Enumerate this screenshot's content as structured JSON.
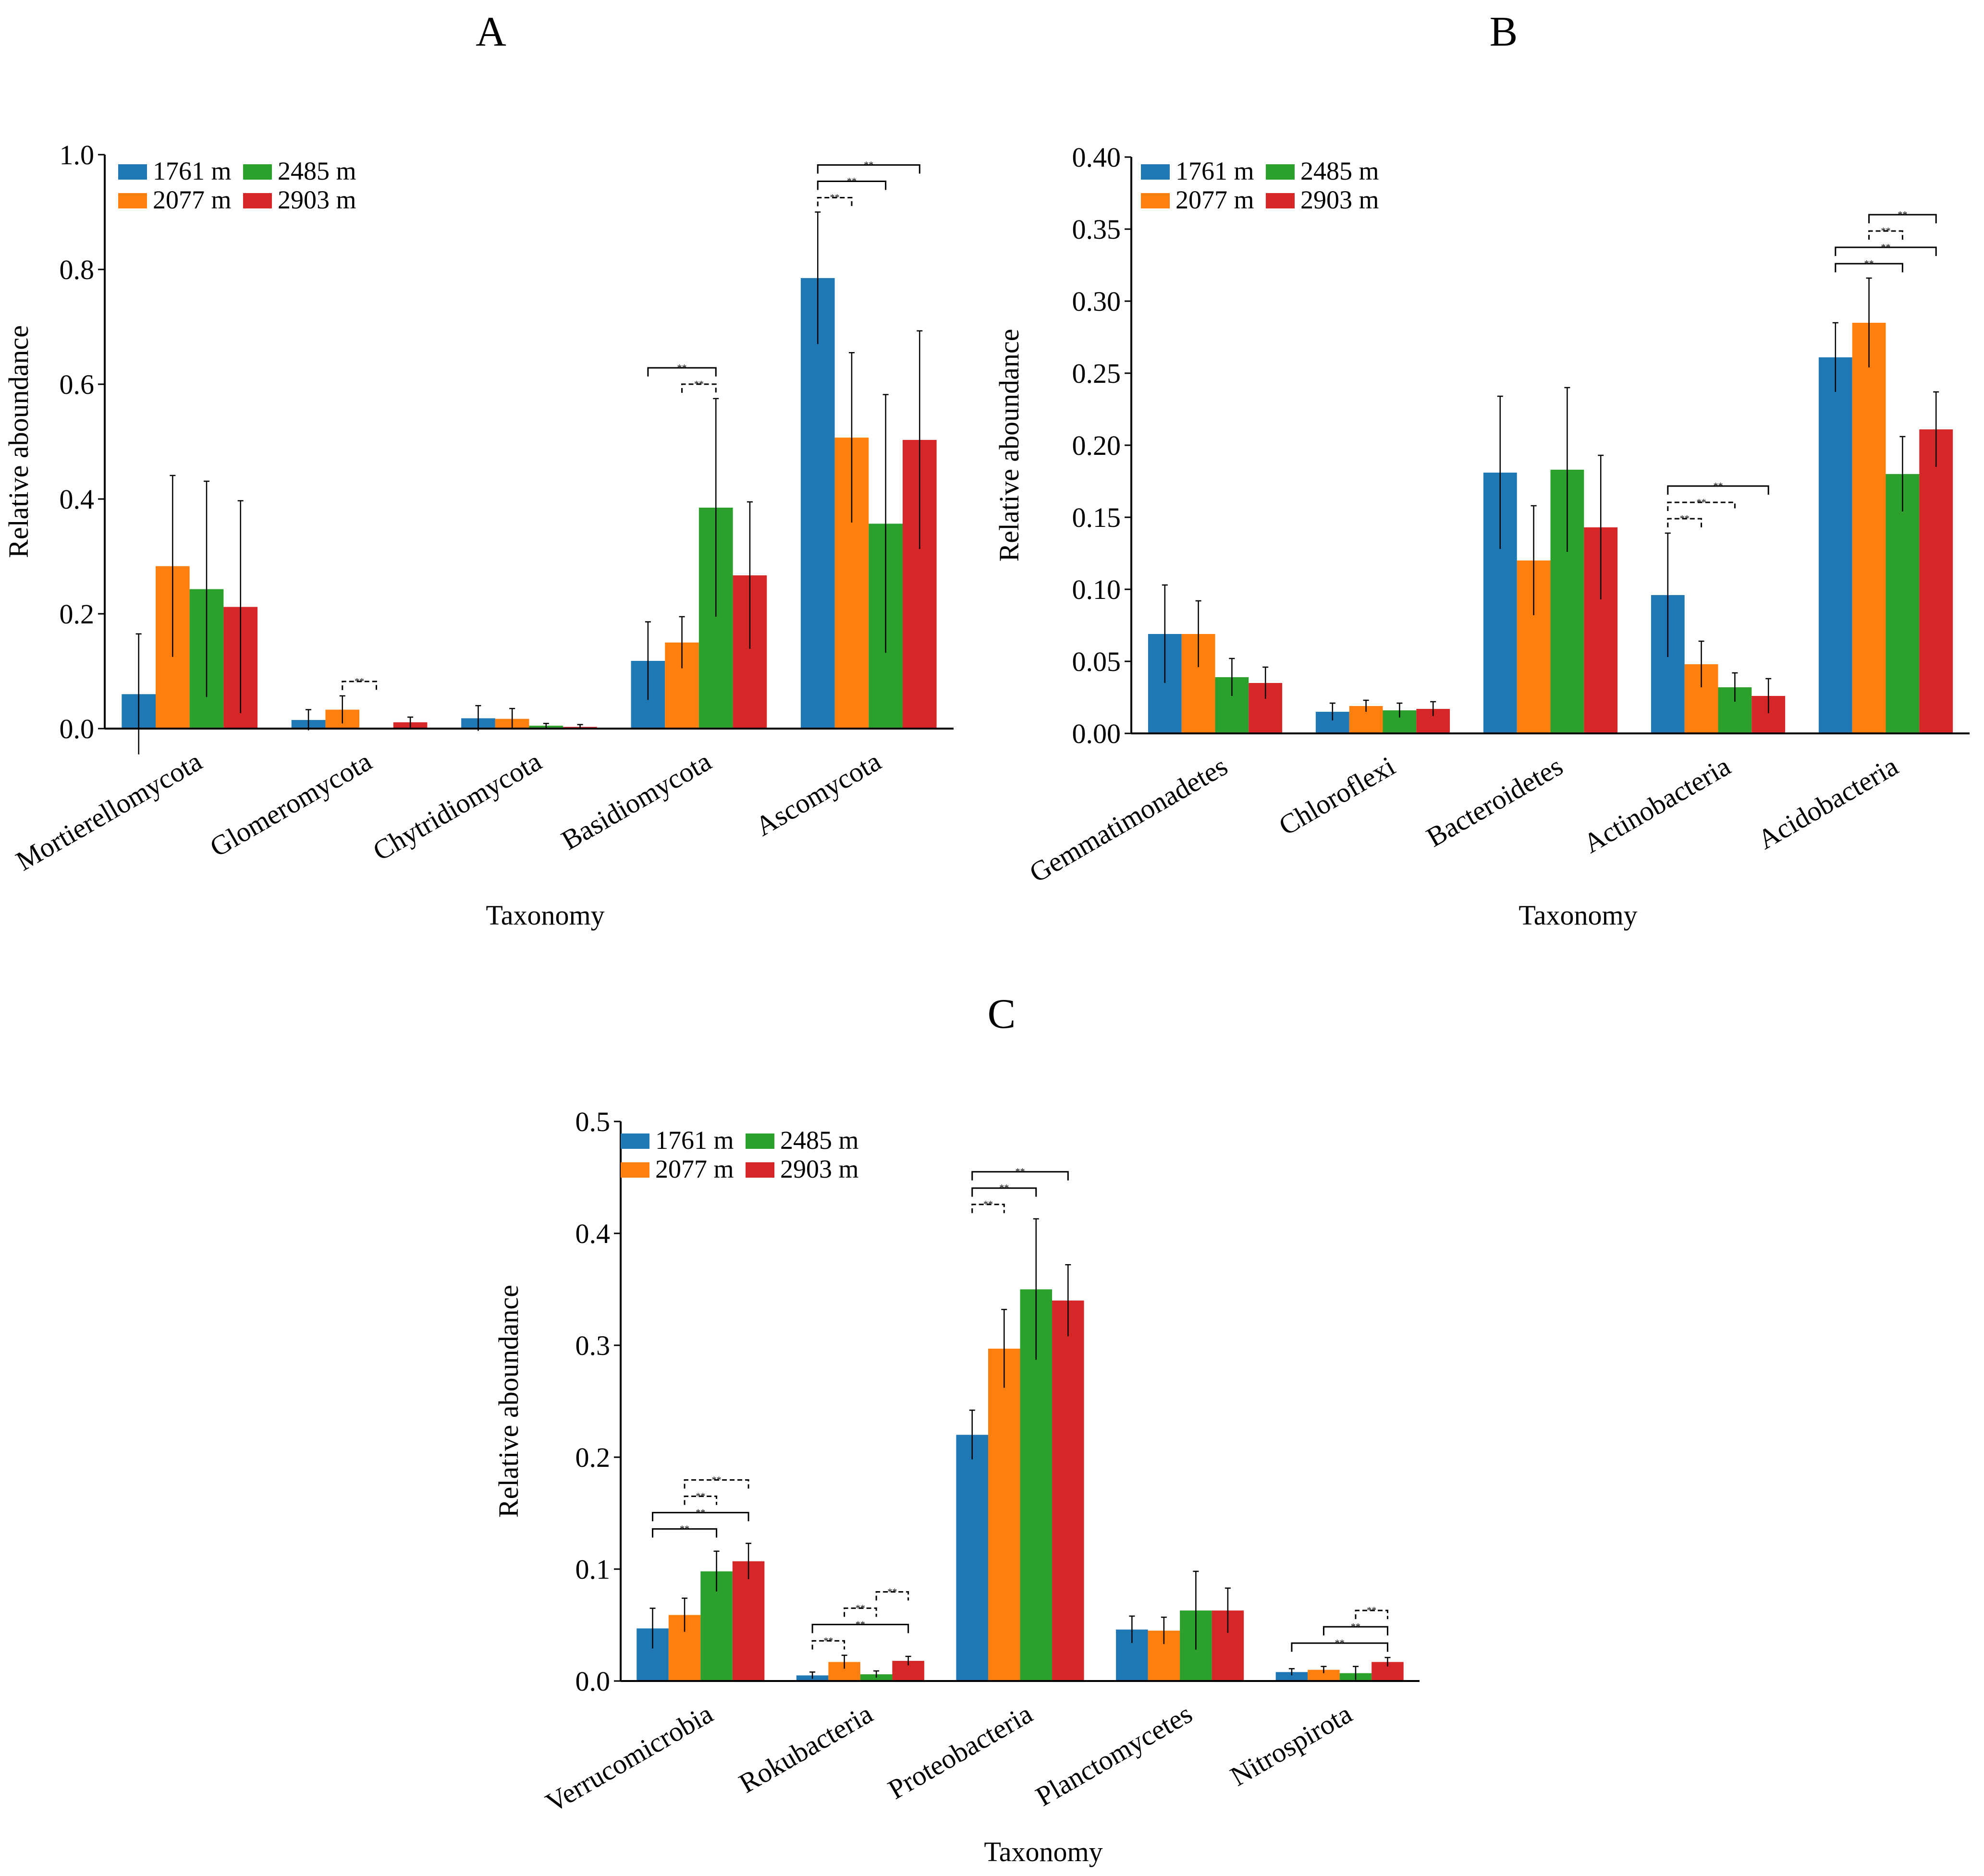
{
  "figure": {
    "legend": [
      {
        "name": "1761 m",
        "color": "#1f77b4"
      },
      {
        "name": "2077 m",
        "color": "#ff7f0e"
      },
      {
        "name": "2485 m",
        "color": "#2ca02c"
      },
      {
        "name": "2903 m",
        "color": "#d62728"
      }
    ],
    "sig_mark": "**"
  },
  "chart_data": [
    {
      "id": "A",
      "type": "bar",
      "title": "A",
      "xlabel": "Taxonomy",
      "ylabel": "Relative aboundance",
      "ylim": [
        0,
        1.0
      ],
      "yticks": [
        0.0,
        0.2,
        0.4,
        0.6,
        0.8,
        1.0
      ],
      "ytick_labels": [
        "0.0",
        "0.2",
        "0.4",
        "0.6",
        "0.8",
        "1.0"
      ],
      "legend_position": "top-left",
      "grid": false,
      "categories": [
        "Mortierellomycota",
        "Glomeromycota",
        "Chytridiomycota",
        "Basidiomycota",
        "Ascomycota"
      ],
      "series": [
        {
          "name": "1761 m",
          "values": [
            0.06,
            0.015,
            0.018,
            0.118,
            0.785
          ],
          "errors": [
            0.105,
            0.018,
            0.022,
            0.068,
            0.115
          ]
        },
        {
          "name": "2077 m",
          "values": [
            0.283,
            0.033,
            0.017,
            0.15,
            0.507
          ],
          "errors": [
            0.158,
            0.024,
            0.018,
            0.045,
            0.148
          ]
        },
        {
          "name": "2485 m",
          "values": [
            0.243,
            0.0,
            0.005,
            0.385,
            0.357
          ],
          "errors": [
            0.188,
            0.0,
            0.004,
            0.19,
            0.225
          ]
        },
        {
          "name": "2903 m",
          "values": [
            0.212,
            0.011,
            0.003,
            0.267,
            0.503
          ],
          "errors": [
            0.185,
            0.009,
            0.004,
            0.128,
            0.19
          ]
        }
      ],
      "significance": [
        {
          "category": 1,
          "from": 1,
          "to": 2,
          "level": 0,
          "dashed": true
        },
        {
          "category": 3,
          "from": 1,
          "to": 2,
          "level": 0,
          "dashed": true
        },
        {
          "category": 3,
          "from": 0,
          "to": 2,
          "level": 1,
          "dashed": false
        },
        {
          "category": 4,
          "from": 0,
          "to": 1,
          "level": 0,
          "dashed": true
        },
        {
          "category": 4,
          "from": 0,
          "to": 2,
          "level": 1,
          "dashed": false
        },
        {
          "category": 4,
          "from": 0,
          "to": 3,
          "level": 2,
          "dashed": false
        }
      ]
    },
    {
      "id": "B",
      "type": "bar",
      "title": "B",
      "xlabel": "Taxonomy",
      "ylabel": "Relative aboundance",
      "ylim": [
        0,
        0.4
      ],
      "yticks": [
        0.0,
        0.05,
        0.1,
        0.15,
        0.2,
        0.25,
        0.3,
        0.35,
        0.4
      ],
      "ytick_labels": [
        "0.00",
        "0.05",
        "0.10",
        "0.15",
        "0.20",
        "0.25",
        "0.30",
        "0.35",
        "0.40"
      ],
      "legend_position": "top-left",
      "grid": false,
      "categories": [
        "Gemmatimonadetes",
        "Chloroflexi",
        "Bacteroidetes",
        "Actinobacteria",
        "Acidobacteria"
      ],
      "series": [
        {
          "name": "1761 m",
          "values": [
            0.069,
            0.015,
            0.181,
            0.096,
            0.261
          ],
          "errors": [
            0.034,
            0.006,
            0.053,
            0.043,
            0.024
          ]
        },
        {
          "name": "2077 m",
          "values": [
            0.069,
            0.019,
            0.12,
            0.048,
            0.285
          ],
          "errors": [
            0.023,
            0.004,
            0.038,
            0.016,
            0.031
          ]
        },
        {
          "name": "2485 m",
          "values": [
            0.039,
            0.016,
            0.183,
            0.032,
            0.18
          ],
          "errors": [
            0.013,
            0.005,
            0.057,
            0.01,
            0.026
          ]
        },
        {
          "name": "2903 m",
          "values": [
            0.035,
            0.017,
            0.143,
            0.026,
            0.211
          ],
          "errors": [
            0.011,
            0.005,
            0.05,
            0.012,
            0.026
          ]
        }
      ],
      "significance": [
        {
          "category": 3,
          "from": 0,
          "to": 1,
          "level": 0,
          "dashed": true
        },
        {
          "category": 3,
          "from": 0,
          "to": 2,
          "level": 1,
          "dashed": true
        },
        {
          "category": 3,
          "from": 0,
          "to": 3,
          "level": 2,
          "dashed": false
        },
        {
          "category": 4,
          "from": 0,
          "to": 2,
          "level": 0,
          "dashed": false
        },
        {
          "category": 4,
          "from": 0,
          "to": 3,
          "level": 1,
          "dashed": false
        },
        {
          "category": 4,
          "from": 1,
          "to": 2,
          "level": 2,
          "dashed": true
        },
        {
          "category": 4,
          "from": 1,
          "to": 3,
          "level": 3,
          "dashed": false
        }
      ]
    },
    {
      "id": "C",
      "type": "bar",
      "title": "C",
      "xlabel": "Taxonomy",
      "ylabel": "Relative aboundance",
      "ylim": [
        0,
        0.5
      ],
      "yticks": [
        0.0,
        0.1,
        0.2,
        0.3,
        0.4,
        0.5
      ],
      "ytick_labels": [
        "0.0",
        "0.1",
        "0.2",
        "0.3",
        "0.4",
        "0.5"
      ],
      "legend_position": "top-left",
      "grid": false,
      "categories": [
        "Verrucomicrobia",
        "Rokubacteria",
        "Proteobacteria",
        "Planctomycetes",
        "Nitrospirota"
      ],
      "series": [
        {
          "name": "1761 m",
          "values": [
            0.047,
            0.005,
            0.22,
            0.046,
            0.008
          ],
          "errors": [
            0.018,
            0.003,
            0.022,
            0.012,
            0.003
          ]
        },
        {
          "name": "2077 m",
          "values": [
            0.059,
            0.017,
            0.297,
            0.045,
            0.01
          ],
          "errors": [
            0.015,
            0.006,
            0.035,
            0.012,
            0.003
          ]
        },
        {
          "name": "2485 m",
          "values": [
            0.098,
            0.006,
            0.35,
            0.063,
            0.007
          ],
          "errors": [
            0.018,
            0.003,
            0.063,
            0.035,
            0.006
          ]
        },
        {
          "name": "2903 m",
          "values": [
            0.107,
            0.018,
            0.34,
            0.063,
            0.017
          ],
          "errors": [
            0.016,
            0.004,
            0.032,
            0.02,
            0.004
          ]
        }
      ],
      "significance": [
        {
          "category": 0,
          "from": 0,
          "to": 2,
          "level": 0,
          "dashed": false
        },
        {
          "category": 0,
          "from": 0,
          "to": 3,
          "level": 1,
          "dashed": false
        },
        {
          "category": 0,
          "from": 1,
          "to": 2,
          "level": 2,
          "dashed": true
        },
        {
          "category": 0,
          "from": 1,
          "to": 3,
          "level": 3,
          "dashed": true
        },
        {
          "category": 1,
          "from": 0,
          "to": 1,
          "level": 0,
          "dashed": true
        },
        {
          "category": 1,
          "from": 0,
          "to": 3,
          "level": 1,
          "dashed": false
        },
        {
          "category": 1,
          "from": 1,
          "to": 2,
          "level": 2,
          "dashed": true
        },
        {
          "category": 1,
          "from": 2,
          "to": 3,
          "level": 3,
          "dashed": true
        },
        {
          "category": 2,
          "from": 0,
          "to": 1,
          "level": 0,
          "dashed": true
        },
        {
          "category": 2,
          "from": 0,
          "to": 2,
          "level": 1,
          "dashed": false
        },
        {
          "category": 2,
          "from": 0,
          "to": 3,
          "level": 2,
          "dashed": false
        },
        {
          "category": 4,
          "from": 0,
          "to": 3,
          "level": 0,
          "dashed": false
        },
        {
          "category": 4,
          "from": 1,
          "to": 3,
          "level": 1,
          "dashed": false
        },
        {
          "category": 4,
          "from": 2,
          "to": 3,
          "level": 2,
          "dashed": true
        }
      ]
    }
  ]
}
